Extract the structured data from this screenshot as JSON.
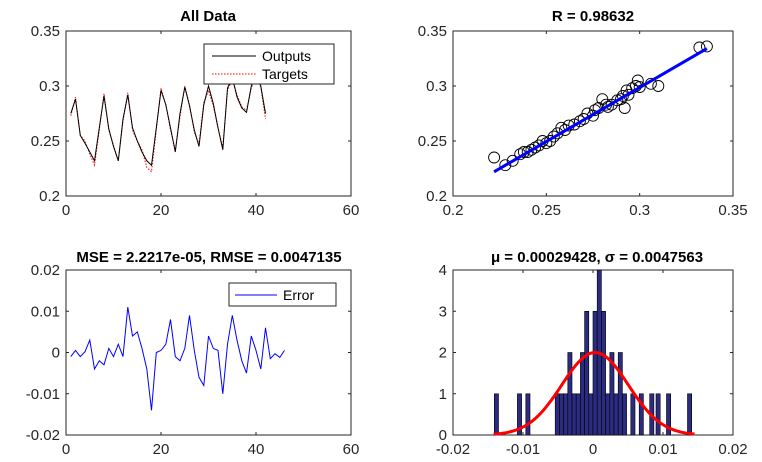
{
  "chart_data": [
    {
      "type": "line",
      "title": "All Data",
      "xlim": [
        0,
        60
      ],
      "ylim": [
        0.2,
        0.35
      ],
      "xticks": [
        "0",
        "20",
        "40",
        "60"
      ],
      "yticks": [
        "0.2",
        "0.25",
        "0.3",
        "0.35"
      ],
      "legend": {
        "placement": "top-right",
        "entries": [
          "Outputs",
          "Targets"
        ]
      },
      "colors": {
        "outputs": "#000000",
        "targets": "#ff0000"
      },
      "series": [
        {
          "name": "Outputs",
          "style": "solid",
          "x": [
            1,
            2,
            3,
            4,
            5,
            6,
            7,
            8,
            9,
            10,
            11,
            12,
            13,
            14,
            15,
            16,
            17,
            18,
            19,
            20,
            21,
            22,
            23,
            24,
            25,
            26,
            27,
            28,
            29,
            30,
            31,
            32,
            33,
            34,
            35,
            36,
            37,
            38,
            39,
            40,
            41,
            42
          ],
          "y": [
            0.275,
            0.288,
            0.255,
            0.248,
            0.24,
            0.232,
            0.262,
            0.291,
            0.261,
            0.245,
            0.232,
            0.27,
            0.292,
            0.262,
            0.25,
            0.24,
            0.232,
            0.228,
            0.262,
            0.296,
            0.283,
            0.262,
            0.24,
            0.275,
            0.299,
            0.282,
            0.26,
            0.245,
            0.283,
            0.3,
            0.284,
            0.262,
            0.242,
            0.298,
            0.308,
            0.29,
            0.28,
            0.276,
            0.3,
            0.309,
            0.3,
            0.275
          ]
        },
        {
          "name": "Targets",
          "style": "dotted",
          "x": [
            1,
            2,
            3,
            4,
            5,
            6,
            7,
            8,
            9,
            10,
            11,
            12,
            13,
            14,
            15,
            16,
            17,
            18,
            19,
            20,
            21,
            22,
            23,
            24,
            25,
            26,
            27,
            28,
            29,
            30,
            31,
            32,
            33,
            34,
            35,
            36,
            37,
            38,
            39,
            40,
            41,
            42
          ],
          "y": [
            0.273,
            0.29,
            0.255,
            0.25,
            0.238,
            0.228,
            0.26,
            0.293,
            0.26,
            0.246,
            0.232,
            0.268,
            0.294,
            0.26,
            0.25,
            0.242,
            0.226,
            0.222,
            0.26,
            0.298,
            0.283,
            0.26,
            0.242,
            0.272,
            0.3,
            0.283,
            0.258,
            0.247,
            0.285,
            0.296,
            0.282,
            0.262,
            0.244,
            0.296,
            0.306,
            0.292,
            0.281,
            0.278,
            0.298,
            0.31,
            0.299,
            0.27
          ]
        }
      ]
    },
    {
      "type": "scatter",
      "title": "R = 0.98632",
      "xlim": [
        0.2,
        0.35
      ],
      "ylim": [
        0.2,
        0.35
      ],
      "xticks": [
        "0.2",
        "0.25",
        "0.3",
        "0.35"
      ],
      "yticks": [
        "0.2",
        "0.25",
        "0.3",
        "0.35"
      ],
      "colors": {
        "markers": "#000000",
        "fit": "#0000ff"
      },
      "fit_line": {
        "x": [
          0.222,
          0.336
        ],
        "y": [
          0.222,
          0.334
        ]
      },
      "points": {
        "x": [
          0.222,
          0.228,
          0.232,
          0.236,
          0.238,
          0.24,
          0.242,
          0.244,
          0.246,
          0.248,
          0.25,
          0.252,
          0.254,
          0.256,
          0.258,
          0.26,
          0.262,
          0.265,
          0.268,
          0.27,
          0.272,
          0.275,
          0.276,
          0.278,
          0.28,
          0.282,
          0.283,
          0.285,
          0.288,
          0.29,
          0.291,
          0.292,
          0.293,
          0.294,
          0.296,
          0.298,
          0.3,
          0.299,
          0.306,
          0.31,
          0.332,
          0.336
        ],
        "y": [
          0.235,
          0.228,
          0.232,
          0.238,
          0.24,
          0.24,
          0.242,
          0.244,
          0.246,
          0.25,
          0.248,
          0.25,
          0.254,
          0.257,
          0.262,
          0.26,
          0.264,
          0.265,
          0.268,
          0.27,
          0.275,
          0.273,
          0.278,
          0.28,
          0.288,
          0.283,
          0.281,
          0.283,
          0.287,
          0.288,
          0.291,
          0.28,
          0.296,
          0.292,
          0.298,
          0.3,
          0.299,
          0.305,
          0.302,
          0.3,
          0.335,
          0.336
        ]
      }
    },
    {
      "type": "line",
      "title": "MSE = 2.2217e-05, RMSE = 0.0047135",
      "xlim": [
        0,
        60
      ],
      "ylim": [
        -0.02,
        0.02
      ],
      "xticks": [
        "0",
        "20",
        "40",
        "60"
      ],
      "yticks": [
        "-0.02",
        "-0.01",
        "0",
        "0.01",
        "0.02"
      ],
      "legend": {
        "placement": "top-right",
        "entries": [
          "Error"
        ]
      },
      "colors": {
        "error": "#0000ff"
      },
      "series": [
        {
          "name": "Error",
          "style": "solid",
          "x": [
            1,
            2,
            3,
            4,
            5,
            6,
            7,
            8,
            9,
            10,
            11,
            12,
            13,
            14,
            15,
            16,
            17,
            18,
            19,
            20,
            21,
            22,
            23,
            24,
            25,
            26,
            27,
            28,
            29,
            30,
            31,
            32,
            33,
            34,
            35,
            36,
            37,
            38,
            39,
            40,
            41,
            42,
            43,
            44,
            45,
            46
          ],
          "y": [
            -0.001,
            0.0005,
            -0.001,
            0.0002,
            0.003,
            -0.004,
            -0.002,
            -0.003,
            0.001,
            -0.001,
            0.002,
            -0.001,
            0.011,
            0.004,
            0.005,
            0.001,
            -0.004,
            -0.014,
            0,
            0.0005,
            0.002,
            0.008,
            -0.001,
            -0.002,
            0.001,
            0.009,
            0.0005,
            -0.006,
            -0.008,
            0.004,
            0.001,
            0.0005,
            -0.01,
            0.002,
            0.009,
            0.003,
            -0.002,
            -0.005,
            0.004,
            0.0005,
            -0.004,
            0.006,
            -0.0015,
            -0.0003,
            -0.0012,
            0.0005
          ]
        }
      ]
    },
    {
      "type": "bar",
      "title": "μ = 0.00029428, σ = 0.0047563",
      "xlim": [
        -0.02,
        0.02
      ],
      "ylim": [
        0,
        4
      ],
      "xticks": [
        "-0.02",
        "-0.01",
        "0",
        "0.01",
        "0.02"
      ],
      "yticks": [
        "0",
        "1",
        "2",
        "3",
        "4"
      ],
      "colors": {
        "bar_fill": "#2b2b82",
        "bar_edge": "#000000",
        "curve": "#ff0000"
      },
      "bin_width": 0.0006,
      "bins": [
        {
          "x": -0.0138,
          "count": 1
        },
        {
          "x": -0.0105,
          "count": 1
        },
        {
          "x": -0.0093,
          "count": 1
        },
        {
          "x": -0.0051,
          "count": 1
        },
        {
          "x": -0.0045,
          "count": 1
        },
        {
          "x": -0.0039,
          "count": 1
        },
        {
          "x": -0.0033,
          "count": 2
        },
        {
          "x": -0.0027,
          "count": 1
        },
        {
          "x": -0.0021,
          "count": 1
        },
        {
          "x": -0.0015,
          "count": 2
        },
        {
          "x": -0.0009,
          "count": 3
        },
        {
          "x": -0.0003,
          "count": 1
        },
        {
          "x": 0.0003,
          "count": 3
        },
        {
          "x": 0.0009,
          "count": 4
        },
        {
          "x": 0.0015,
          "count": 3
        },
        {
          "x": 0.0021,
          "count": 1
        },
        {
          "x": 0.0027,
          "count": 2
        },
        {
          "x": 0.0033,
          "count": 1
        },
        {
          "x": 0.0039,
          "count": 2
        },
        {
          "x": 0.0045,
          "count": 1
        },
        {
          "x": 0.0057,
          "count": 1
        },
        {
          "x": 0.0069,
          "count": 1
        },
        {
          "x": 0.0084,
          "count": 1
        },
        {
          "x": 0.0093,
          "count": 1
        },
        {
          "x": 0.0108,
          "count": 1
        },
        {
          "x": 0.0138,
          "count": 1
        }
      ],
      "normal_curve": {
        "mu": 0.00029428,
        "sigma": 0.0047563,
        "peak": 2.0,
        "x_range": [
          -0.0142,
          0.0145
        ]
      }
    }
  ]
}
